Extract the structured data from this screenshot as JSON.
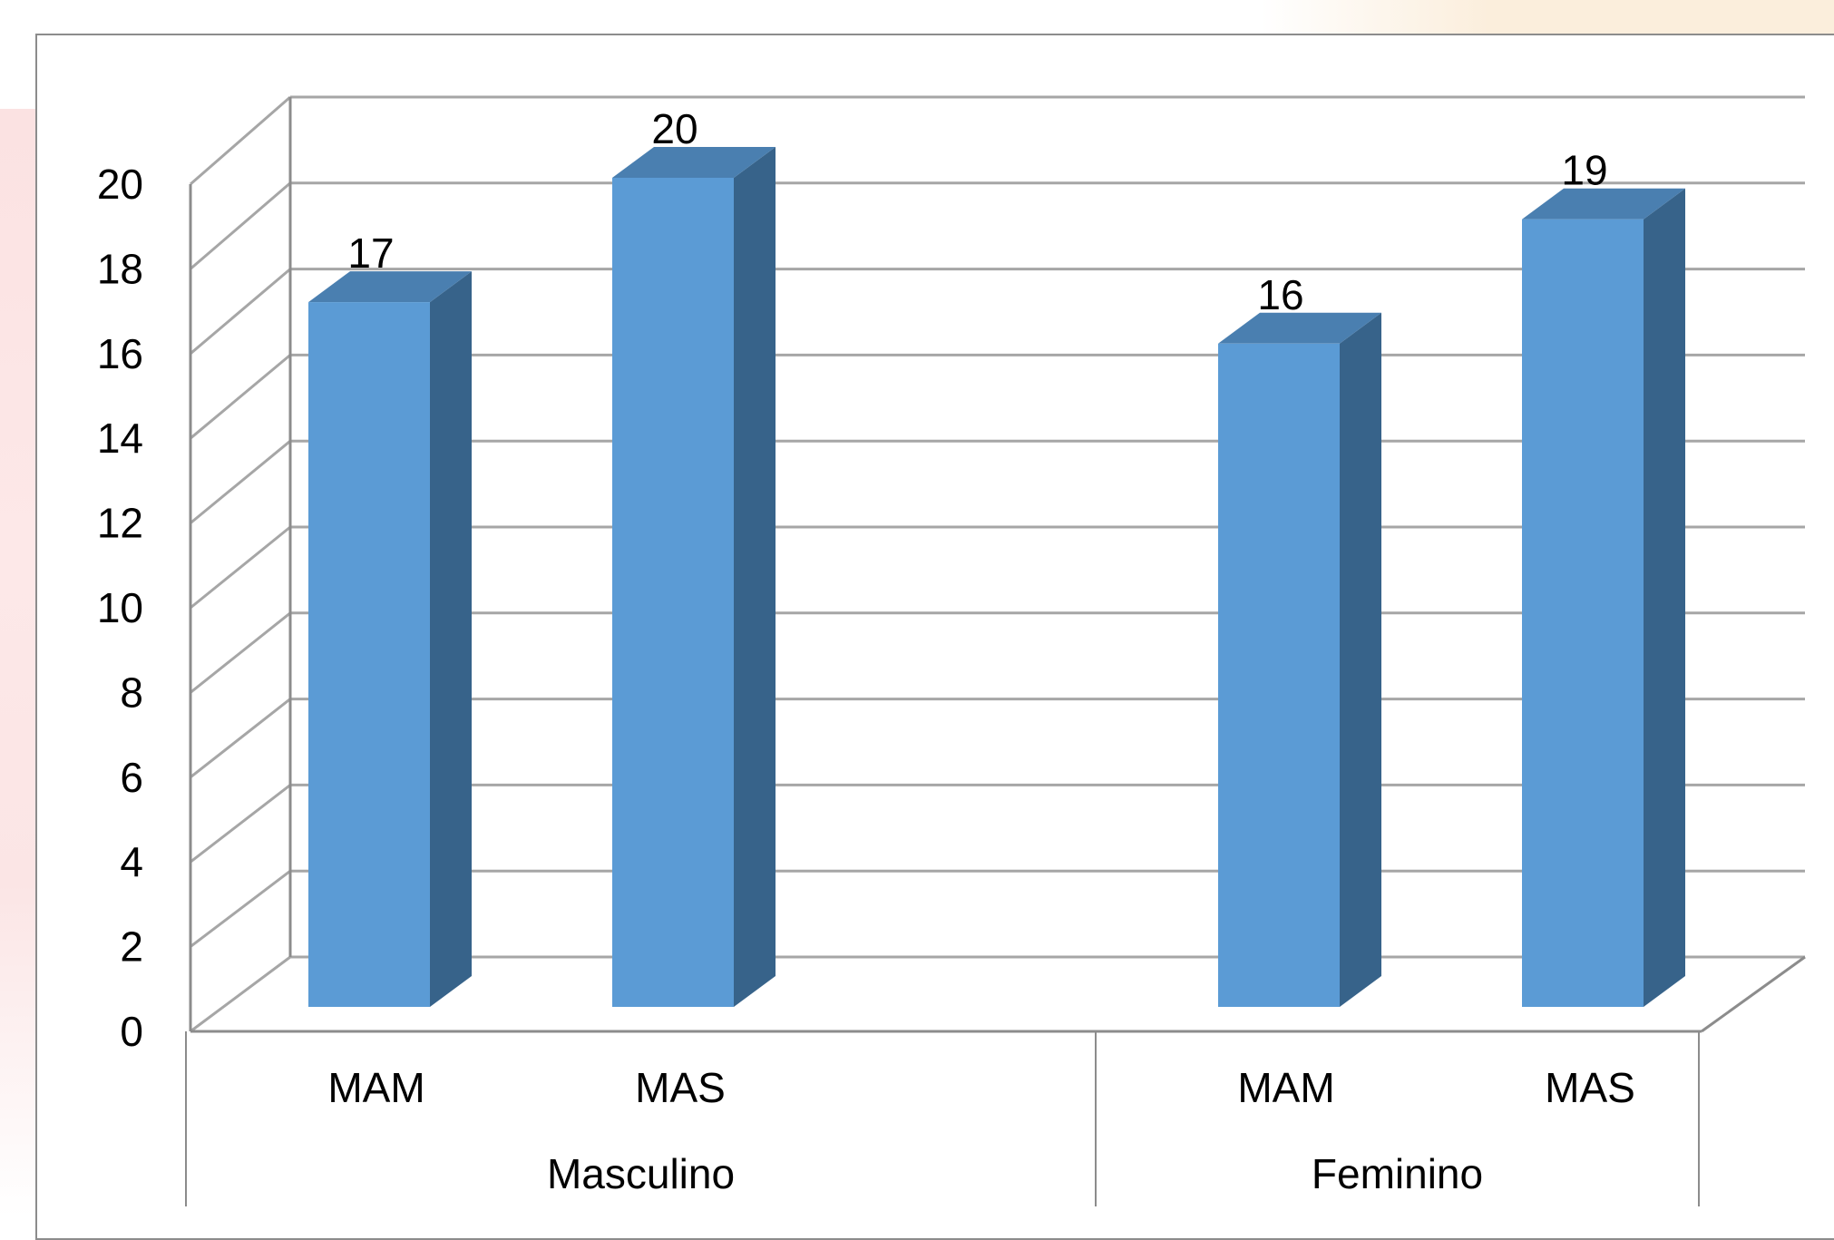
{
  "chart_data": {
    "type": "bar",
    "style": "3d-clustered-column",
    "groups": [
      {
        "label": "Masculino",
        "categories": [
          "MAM",
          "MAS"
        ],
        "values": [
          17,
          20
        ]
      },
      {
        "label": "Feminino",
        "categories": [
          "MAM",
          "MAS"
        ],
        "values": [
          16,
          19
        ]
      }
    ],
    "title": "",
    "xlabel": "",
    "ylabel": "",
    "ylim": [
      0,
      20
    ],
    "y_ticks": [
      0,
      2,
      4,
      6,
      8,
      10,
      12,
      14,
      16,
      18,
      20
    ],
    "data_labels": true,
    "grid": true,
    "legend": "none",
    "colors": {
      "bar_front": "#5b9bd5",
      "bar_top": "#4a7fb0",
      "bar_side": "#37638a",
      "grid": "#a6a6a6",
      "axis": "#8c8c8c"
    }
  }
}
